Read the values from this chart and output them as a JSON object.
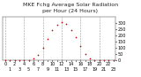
{
  "title": "MKE Fchg Average Solar Radiation",
  "subtitle": "per Hour (24 Hours)",
  "hours": [
    0,
    1,
    2,
    3,
    4,
    5,
    6,
    7,
    8,
    9,
    10,
    11,
    12,
    13,
    14,
    15,
    16,
    17,
    18,
    19,
    20,
    21,
    22,
    23
  ],
  "solar": [
    0,
    0,
    0,
    0,
    0,
    2,
    10,
    40,
    100,
    175,
    240,
    285,
    310,
    290,
    245,
    185,
    115,
    50,
    10,
    2,
    0,
    0,
    0,
    0
  ],
  "dot_color": "#cc0000",
  "bg_color": "#ffffff",
  "grid_color": "#999999",
  "vgrid_positions": [
    0,
    4,
    8,
    12,
    16,
    20
  ],
  "ylim": [
    0,
    350
  ],
  "ytick_right_labels": [
    "0",
    "50",
    "100",
    "150",
    "200",
    "250",
    "300"
  ],
  "ytick_right_values": [
    0,
    50,
    100,
    150,
    200,
    250,
    300
  ],
  "title_fontsize": 4.5,
  "label_fontsize": 3.5
}
